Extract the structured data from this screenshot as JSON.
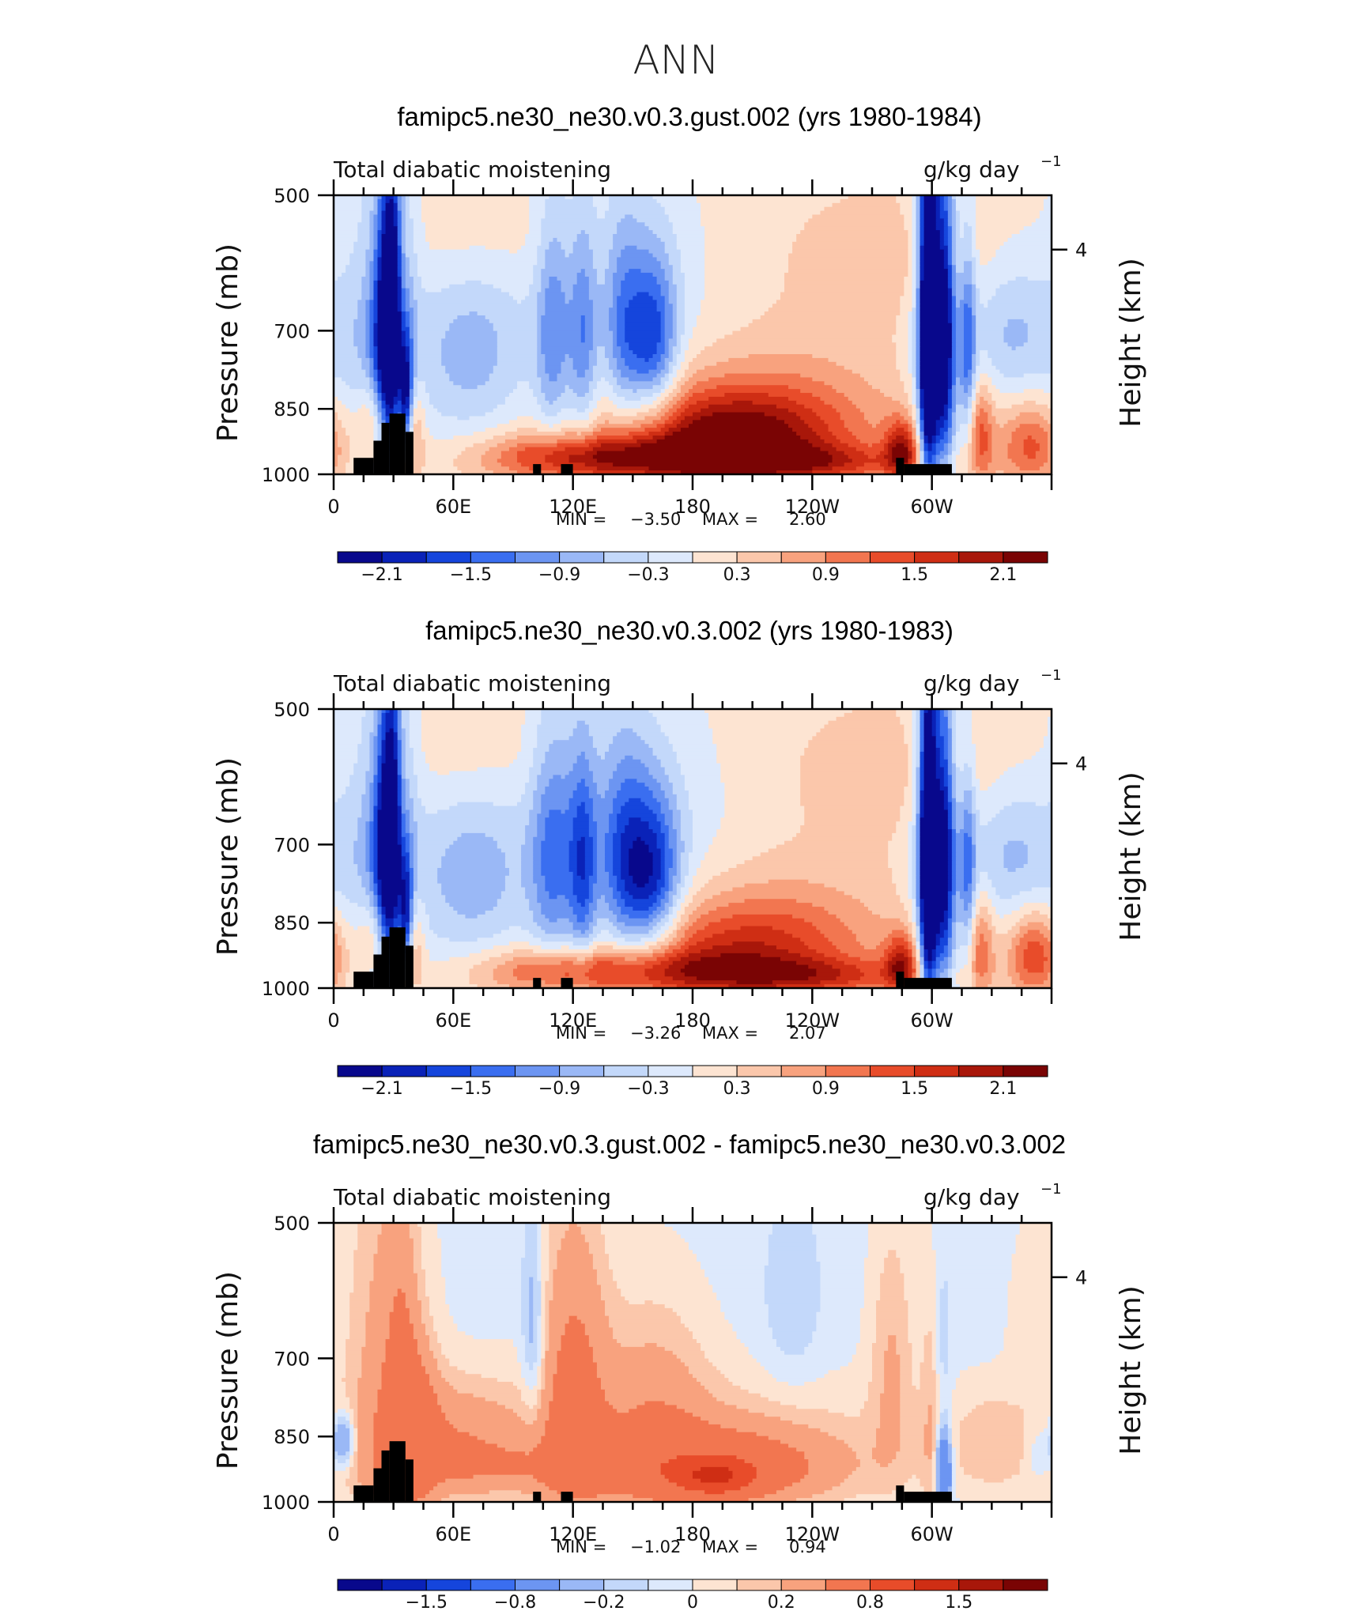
{
  "page": {
    "title": "ANN"
  },
  "chart_data": [
    {
      "type": "heatmap",
      "title": "famipc5.ne30_ne30.v0.3.gust.002 (yrs 1980-1984)",
      "left_string": "Total diabatic moistening",
      "units": "g/kg day",
      "units_exp": "−1",
      "ylabel": "Pressure (mb)",
      "right_label": "Height (km)",
      "right_ticks": [
        "4"
      ],
      "y_ticks": [
        "500",
        "700",
        "850",
        "1000"
      ],
      "x_ticks": [
        "0",
        "60E",
        "120E",
        "180",
        "120W",
        "60W"
      ],
      "ylim": [
        1000,
        500
      ],
      "stats": {
        "min_label": "MIN =",
        "min": "−3.50",
        "max_label": "MAX =",
        "max": "2.60"
      },
      "colorbar_labels": [
        "−2.1",
        "−1.5",
        "−0.9",
        "−0.3",
        "0.3",
        "0.9",
        "1.5",
        "2.1"
      ],
      "colors": [
        "#08088c",
        "#0a22b8",
        "#1545dc",
        "#3a6ef0",
        "#6c95f2",
        "#9ab8f6",
        "#c3d8fa",
        "#dde9fc",
        "#fde4d2",
        "#fbc7ab",
        "#f8a27e",
        "#f27650",
        "#e84c2a",
        "#cf2e14",
        "#a8170a",
        "#7a0404"
      ],
      "levels": [
        -2.1,
        -1.8,
        -1.5,
        -1.2,
        -0.9,
        -0.6,
        -0.3,
        0,
        0.3,
        0.6,
        0.9,
        1.2,
        1.5,
        1.8,
        2.1
      ],
      "field": {
        "background": 0.1,
        "blobs": [
          [
            30,
            640,
            5,
            170,
            -2.6
          ],
          [
            27,
            780,
            6,
            150,
            -1.3
          ],
          [
            36,
            830,
            2.5,
            90,
            -2.4
          ],
          [
            34,
            760,
            3,
            220,
            1.6
          ],
          [
            40,
            900,
            4,
            80,
            0.9
          ],
          [
            21,
            880,
            6,
            70,
            1.1
          ],
          [
            22,
            720,
            14,
            220,
            -0.7
          ],
          [
            68,
            740,
            20,
            120,
            -0.8
          ],
          [
            110,
            710,
            6,
            150,
            -1.0
          ],
          [
            125,
            720,
            5,
            150,
            -1.0
          ],
          [
            145,
            700,
            7,
            140,
            -0.9
          ],
          [
            160,
            720,
            9,
            110,
            -1.6
          ],
          [
            150,
            730,
            45,
            160,
            -0.55
          ],
          [
            200,
            900,
            38,
            70,
            1.6
          ],
          [
            200,
            880,
            60,
            150,
            0.9
          ],
          [
            230,
            550,
            50,
            60,
            0.05
          ],
          [
            70,
            560,
            30,
            60,
            0.25
          ],
          [
            290,
            580,
            40,
            70,
            0.4
          ],
          [
            110,
            960,
            30,
            40,
            1.0
          ],
          [
            160,
            960,
            40,
            40,
            1.2
          ],
          [
            240,
            970,
            40,
            30,
            1.0
          ],
          [
            298,
            700,
            3,
            230,
            -3.2
          ],
          [
            306,
            710,
            4,
            190,
            -2.3
          ],
          [
            318,
            740,
            3,
            150,
            -1.3
          ],
          [
            300,
            700,
            8,
            260,
            -0.9
          ],
          [
            324,
            900,
            5,
            80,
            1.1
          ],
          [
            340,
            700,
            18,
            100,
            -0.8
          ],
          [
            350,
            930,
            12,
            70,
            1.2
          ],
          [
            285,
            940,
            6,
            50,
            1.6
          ]
        ],
        "land": [
          [
            10,
            20,
            960
          ],
          [
            20,
            24,
            920
          ],
          [
            24,
            28,
            880
          ],
          [
            28,
            36,
            860
          ],
          [
            36,
            40,
            900
          ],
          [
            100,
            104,
            975
          ],
          [
            114,
            120,
            975
          ],
          [
            282,
            286,
            960
          ],
          [
            286,
            310,
            975
          ]
        ]
      }
    },
    {
      "type": "heatmap",
      "title": "famipc5.ne30_ne30.v0.3.002 (yrs 1980-1983)",
      "left_string": "Total diabatic moistening",
      "units": "g/kg day",
      "units_exp": "−1",
      "ylabel": "Pressure (mb)",
      "right_label": "Height (km)",
      "right_ticks": [
        "4"
      ],
      "y_ticks": [
        "500",
        "700",
        "850",
        "1000"
      ],
      "x_ticks": [
        "0",
        "60E",
        "120E",
        "180",
        "120W",
        "60W"
      ],
      "ylim": [
        1000,
        500
      ],
      "stats": {
        "min_label": "MIN =",
        "min": "−3.26",
        "max_label": "MAX =",
        "max": "2.07"
      },
      "colorbar_labels": [
        "−2.1",
        "−1.5",
        "−0.9",
        "−0.3",
        "0.3",
        "0.9",
        "1.5",
        "2.1"
      ],
      "colors": [
        "#08088c",
        "#0a22b8",
        "#1545dc",
        "#3a6ef0",
        "#6c95f2",
        "#9ab8f6",
        "#c3d8fa",
        "#dde9fc",
        "#fde4d2",
        "#fbc7ab",
        "#f8a27e",
        "#f27650",
        "#e84c2a",
        "#cf2e14",
        "#a8170a",
        "#7a0404"
      ],
      "levels": [
        -2.1,
        -1.8,
        -1.5,
        -1.2,
        -0.9,
        -0.6,
        -0.3,
        0,
        0.3,
        0.6,
        0.9,
        1.2,
        1.5,
        1.8,
        2.1
      ],
      "field": {
        "background": 0.1,
        "blobs": [
          [
            30,
            650,
            5,
            170,
            -2.4
          ],
          [
            27,
            780,
            6,
            150,
            -1.2
          ],
          [
            36,
            840,
            2.5,
            90,
            -2.2
          ],
          [
            34,
            770,
            3,
            220,
            1.5
          ],
          [
            40,
            900,
            4,
            80,
            0.8
          ],
          [
            21,
            880,
            6,
            70,
            1.0
          ],
          [
            22,
            720,
            14,
            220,
            -0.7
          ],
          [
            68,
            760,
            20,
            120,
            -0.8
          ],
          [
            110,
            720,
            8,
            160,
            -1.1
          ],
          [
            125,
            740,
            5,
            150,
            -1.3
          ],
          [
            145,
            730,
            9,
            150,
            -1.1
          ],
          [
            160,
            760,
            10,
            110,
            -1.7
          ],
          [
            150,
            760,
            45,
            170,
            -0.7
          ],
          [
            205,
            900,
            40,
            75,
            1.1
          ],
          [
            200,
            880,
            60,
            150,
            0.7
          ],
          [
            230,
            550,
            50,
            60,
            0.05
          ],
          [
            70,
            560,
            30,
            60,
            0.25
          ],
          [
            290,
            580,
            40,
            70,
            0.4
          ],
          [
            110,
            960,
            30,
            40,
            0.9
          ],
          [
            160,
            960,
            40,
            40,
            1.0
          ],
          [
            240,
            970,
            40,
            30,
            1.0
          ],
          [
            298,
            720,
            3,
            230,
            -2.9
          ],
          [
            306,
            720,
            4,
            190,
            -2.0
          ],
          [
            318,
            760,
            3,
            150,
            -1.2
          ],
          [
            300,
            720,
            8,
            260,
            -0.9
          ],
          [
            324,
            900,
            5,
            80,
            1.0
          ],
          [
            340,
            720,
            18,
            100,
            -0.8
          ],
          [
            352,
            920,
            10,
            70,
            1.4
          ],
          [
            285,
            940,
            6,
            50,
            1.5
          ]
        ],
        "land": [
          [
            10,
            20,
            960
          ],
          [
            20,
            24,
            920
          ],
          [
            24,
            28,
            880
          ],
          [
            28,
            36,
            860
          ],
          [
            36,
            40,
            900
          ],
          [
            100,
            104,
            975
          ],
          [
            114,
            120,
            975
          ],
          [
            282,
            286,
            960
          ],
          [
            286,
            310,
            975
          ]
        ]
      }
    },
    {
      "type": "heatmap",
      "title": "famipc5.ne30_ne30.v0.3.gust.002 - famipc5.ne30_ne30.v0.3.002",
      "left_string": "Total diabatic moistening",
      "units": "g/kg day",
      "units_exp": "−1",
      "ylabel": "Pressure (mb)",
      "right_label": "Height (km)",
      "right_ticks": [
        "4"
      ],
      "y_ticks": [
        "500",
        "700",
        "850",
        "1000"
      ],
      "x_ticks": [
        "0",
        "60E",
        "120E",
        "180",
        "120W",
        "60W"
      ],
      "ylim": [
        1000,
        500
      ],
      "stats": {
        "min_label": "MIN =",
        "min": "−1.02",
        "max_label": "MAX =",
        "max": "0.94"
      },
      "colorbar_labels": [
        "−1.5",
        "−0.8",
        "−0.2",
        "0",
        "0.2",
        "0.8",
        "1.5"
      ],
      "colors": [
        "#08088c",
        "#0a22b8",
        "#1545dc",
        "#3a6ef0",
        "#6c95f2",
        "#9ab8f6",
        "#c3d8fa",
        "#dde9fc",
        "#fde4d2",
        "#fbc7ab",
        "#f8a27e",
        "#f27650",
        "#e84c2a",
        "#cf2e14",
        "#a8170a",
        "#7a0404"
      ],
      "levels": [
        -1.5,
        -1.2,
        -0.8,
        -0.5,
        -0.2,
        -0.1,
        -0.05,
        0,
        0.05,
        0.1,
        0.2,
        0.5,
        0.8,
        1.2,
        1.5
      ],
      "field": {
        "background": -0.02,
        "blobs": [
          [
            26,
            700,
            14,
            260,
            0.15
          ],
          [
            34,
            780,
            5,
            230,
            0.12
          ],
          [
            40,
            850,
            8,
            120,
            0.25
          ],
          [
            36,
            900,
            4,
            60,
            -0.25
          ],
          [
            5,
            860,
            4,
            40,
            -0.25
          ],
          [
            60,
            860,
            30,
            90,
            0.2
          ],
          [
            100,
            650,
            4,
            120,
            -0.15
          ],
          [
            120,
            760,
            12,
            210,
            0.25
          ],
          [
            160,
            800,
            20,
            150,
            0.15
          ],
          [
            190,
            920,
            40,
            60,
            0.25
          ],
          [
            192,
            940,
            14,
            30,
            0.55
          ],
          [
            200,
            880,
            60,
            100,
            0.12
          ],
          [
            100,
            920,
            60,
            40,
            0.1
          ],
          [
            230,
            600,
            10,
            100,
            -0.08
          ],
          [
            280,
            700,
            8,
            160,
            0.12
          ],
          [
            300,
            800,
            4,
            180,
            0.1
          ],
          [
            305,
            720,
            3,
            150,
            -0.08
          ],
          [
            306,
            930,
            2.5,
            60,
            -0.5
          ],
          [
            330,
            860,
            15,
            80,
            0.1
          ],
          [
            350,
            640,
            8,
            100,
            0.06
          ],
          [
            354,
            890,
            5,
            40,
            -0.08
          ]
        ],
        "land": [
          [
            10,
            20,
            960
          ],
          [
            20,
            24,
            920
          ],
          [
            24,
            28,
            880
          ],
          [
            28,
            36,
            860
          ],
          [
            36,
            40,
            900
          ],
          [
            100,
            104,
            975
          ],
          [
            114,
            120,
            975
          ],
          [
            282,
            286,
            960
          ],
          [
            286,
            310,
            975
          ]
        ]
      }
    }
  ]
}
